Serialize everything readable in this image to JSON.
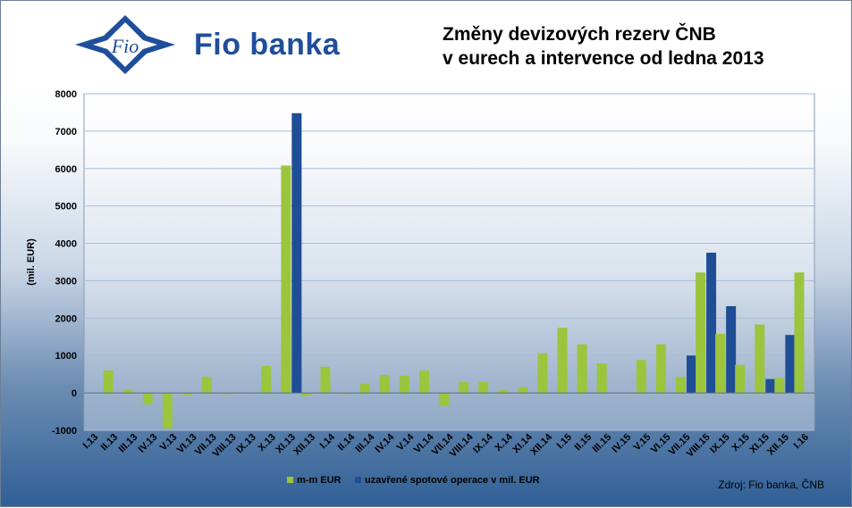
{
  "header": {
    "brand": "Fio banka",
    "logo_text": "Fio",
    "title_line1": "Změny devizových rezerv ČNB",
    "title_line2": "v eurech a intervence od ledna 2013"
  },
  "source_note": "Zdroj: Fio banka, ČNB",
  "colors": {
    "mm_eur": "#9bc53d",
    "spot": "#1f4e96",
    "brand": "#1f4e9c"
  },
  "chart_data": {
    "type": "bar",
    "ylabel": "(mil. EUR)",
    "ylim": [
      -1000,
      8000
    ],
    "yticks": [
      -1000,
      0,
      1000,
      2000,
      3000,
      4000,
      5000,
      6000,
      7000,
      8000
    ],
    "grid": true,
    "legend_position": "bottom",
    "categories": [
      "I.13",
      "II.13",
      "III.13",
      "IV.13",
      "V.13",
      "VI.13",
      "VII.13",
      "VIII.13",
      "IX.13",
      "X.13",
      "XI.13",
      "XII.13",
      "I.14",
      "II.14",
      "III.14",
      "IV.14",
      "V.14",
      "VI.14",
      "VII.14",
      "VIII.14",
      "IX.14",
      "X.14",
      "XI.14",
      "XII.14",
      "I.15",
      "II.15",
      "III.15",
      "IV.15",
      "V.15",
      "VI.15",
      "VII.15",
      "VIII.15",
      "IX.15",
      "X.15",
      "XI.15",
      "XII.15",
      "I.16"
    ],
    "series": [
      {
        "name": "m-m EUR",
        "color": "#9bc53d",
        "values": [
          0,
          600,
          100,
          -300,
          -950,
          -50,
          430,
          -30,
          0,
          720,
          6080,
          -80,
          700,
          -30,
          250,
          480,
          460,
          600,
          -350,
          290,
          290,
          80,
          150,
          1060,
          1740,
          1300,
          790,
          0,
          880,
          1300,
          430,
          3220,
          1580,
          750,
          1830,
          400,
          3220
        ]
      },
      {
        "name": "uzavřené spotové operace v mil. EUR",
        "color": "#1f4e96",
        "values": [
          0,
          0,
          0,
          0,
          0,
          0,
          0,
          0,
          0,
          0,
          7480,
          0,
          0,
          0,
          0,
          0,
          0,
          0,
          0,
          0,
          0,
          0,
          0,
          0,
          0,
          0,
          0,
          0,
          0,
          0,
          1000,
          3750,
          2320,
          0,
          370,
          1550,
          0
        ]
      }
    ]
  }
}
